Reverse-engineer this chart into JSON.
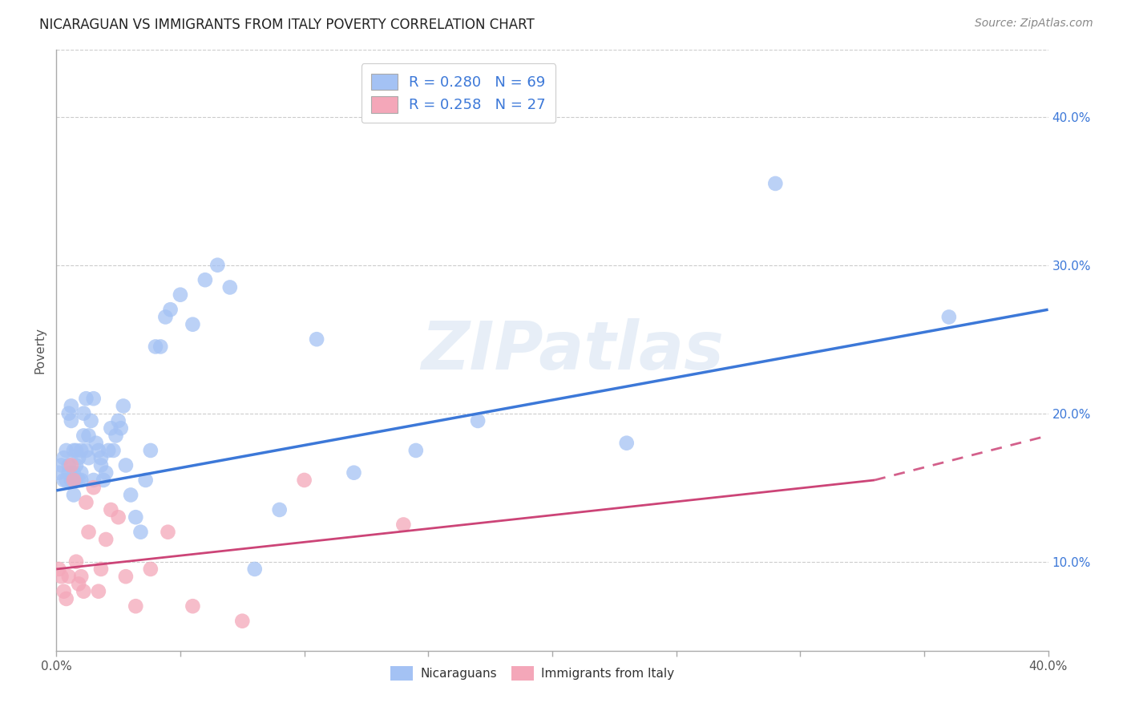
{
  "title": "NICARAGUAN VS IMMIGRANTS FROM ITALY POVERTY CORRELATION CHART",
  "source": "Source: ZipAtlas.com",
  "ylabel": "Poverty",
  "xlim": [
    0.0,
    0.4
  ],
  "ylim": [
    0.04,
    0.445
  ],
  "yticks": [
    0.1,
    0.2,
    0.3,
    0.4
  ],
  "xtick_count": 9,
  "blue_R": 0.28,
  "blue_N": 69,
  "pink_R": 0.258,
  "pink_N": 27,
  "blue_color": "#a4c2f4",
  "pink_color": "#f4a7b9",
  "blue_line_color": "#3c78d8",
  "pink_line_color": "#cc4477",
  "watermark": "ZIPatlas",
  "legend_R_color": "#3c78d8",
  "legend_text_color": "#222222",
  "right_axis_color": "#3c78d8",
  "blue_x": [
    0.001,
    0.002,
    0.003,
    0.003,
    0.004,
    0.004,
    0.005,
    0.005,
    0.005,
    0.006,
    0.006,
    0.006,
    0.007,
    0.007,
    0.007,
    0.008,
    0.008,
    0.008,
    0.009,
    0.009,
    0.01,
    0.01,
    0.01,
    0.011,
    0.011,
    0.012,
    0.012,
    0.013,
    0.013,
    0.014,
    0.015,
    0.015,
    0.016,
    0.017,
    0.018,
    0.018,
    0.019,
    0.02,
    0.021,
    0.022,
    0.023,
    0.024,
    0.025,
    0.026,
    0.027,
    0.028,
    0.03,
    0.032,
    0.034,
    0.036,
    0.038,
    0.04,
    0.042,
    0.044,
    0.046,
    0.05,
    0.055,
    0.06,
    0.065,
    0.07,
    0.08,
    0.09,
    0.105,
    0.12,
    0.145,
    0.17,
    0.23,
    0.29,
    0.36
  ],
  "blue_y": [
    0.16,
    0.165,
    0.155,
    0.17,
    0.155,
    0.175,
    0.16,
    0.165,
    0.2,
    0.155,
    0.195,
    0.205,
    0.145,
    0.16,
    0.175,
    0.155,
    0.165,
    0.175,
    0.155,
    0.17,
    0.175,
    0.155,
    0.16,
    0.185,
    0.2,
    0.175,
    0.21,
    0.17,
    0.185,
    0.195,
    0.155,
    0.21,
    0.18,
    0.175,
    0.17,
    0.165,
    0.155,
    0.16,
    0.175,
    0.19,
    0.175,
    0.185,
    0.195,
    0.19,
    0.205,
    0.165,
    0.145,
    0.13,
    0.12,
    0.155,
    0.175,
    0.245,
    0.245,
    0.265,
    0.27,
    0.28,
    0.26,
    0.29,
    0.3,
    0.285,
    0.095,
    0.135,
    0.25,
    0.16,
    0.175,
    0.195,
    0.18,
    0.355,
    0.265
  ],
  "pink_x": [
    0.001,
    0.002,
    0.003,
    0.004,
    0.005,
    0.006,
    0.007,
    0.008,
    0.009,
    0.01,
    0.011,
    0.012,
    0.013,
    0.015,
    0.017,
    0.018,
    0.02,
    0.022,
    0.025,
    0.028,
    0.032,
    0.038,
    0.045,
    0.055,
    0.075,
    0.1,
    0.14
  ],
  "pink_y": [
    0.095,
    0.09,
    0.08,
    0.075,
    0.09,
    0.165,
    0.155,
    0.1,
    0.085,
    0.09,
    0.08,
    0.14,
    0.12,
    0.15,
    0.08,
    0.095,
    0.115,
    0.135,
    0.13,
    0.09,
    0.07,
    0.095,
    0.12,
    0.07,
    0.06,
    0.155,
    0.125
  ]
}
